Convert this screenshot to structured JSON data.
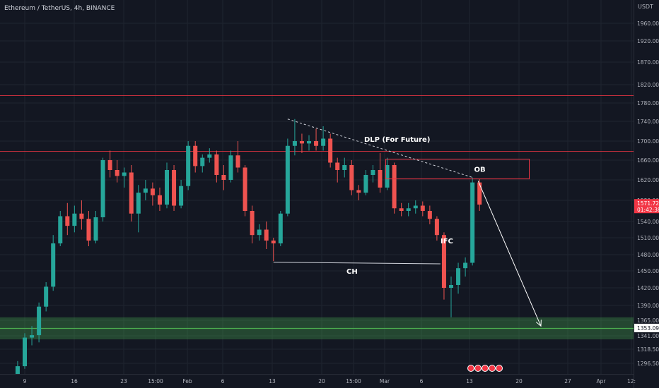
{
  "header": {
    "symbol": "Ethereum / TetherUS, 4h, BINANCE"
  },
  "chart_data": {
    "type": "candlestick",
    "currency": "USDT",
    "ylim": [
      1280,
      1990
    ],
    "price_ticks": [
      "1960.00",
      "1920.00",
      "1870.00",
      "1820.00",
      "1780.00",
      "1740.00",
      "1700.00",
      "1660.00",
      "1620.00",
      "1580.00",
      "1540.00",
      "1510.00",
      "1480.00",
      "1450.00",
      "1420.00",
      "1390.00",
      "1365.00",
      "1341.00",
      "1318.50",
      "1296.50"
    ],
    "x_labels": [
      "9",
      "16",
      "23",
      "15:00",
      "Feb",
      "6",
      "13",
      "20",
      "15:00",
      "Mar",
      "6",
      "13",
      "20",
      "27",
      "Apr",
      "12:"
    ],
    "current_price": {
      "value": "1571.72",
      "countdown": "01:42:38",
      "color": "#f23645"
    },
    "level_label": {
      "value": "1353.09",
      "color": "#131722"
    },
    "horizontal_levels": [
      1797,
      1680
    ],
    "demand_zone": {
      "top": 1370,
      "bottom": 1335,
      "line": 1353.09,
      "color": "#4caf50"
    },
    "order_block": {
      "label": "OB",
      "from": "2023-03-01",
      "to": "2023-03-20",
      "top": 1662,
      "bottom": 1622
    },
    "trendline": {
      "label": "DLP (For Future)",
      "from": [
        "2023-02-15",
        1745
      ],
      "to": [
        "2023-03-13",
        1625
      ]
    },
    "choch": {
      "label": "CH",
      "from": [
        "2023-02-13",
        1466
      ],
      "to": [
        "2023-03-08",
        1463
      ]
    },
    "ifc_label": {
      "text": "IFC",
      "x": "2023-03-09",
      "y": 1505
    },
    "projection": {
      "from": [
        "2023-03-13",
        1618
      ],
      "to": [
        "2023-03-19",
        1356
      ]
    },
    "candles": [
      {
        "t": "2023-01-08",
        "o": 1270,
        "h": 1300,
        "l": 1265,
        "c": 1292
      },
      {
        "t": "2023-01-09",
        "o": 1292,
        "h": 1345,
        "l": 1288,
        "c": 1338
      },
      {
        "t": "2023-01-10",
        "o": 1338,
        "h": 1356,
        "l": 1325,
        "c": 1342
      },
      {
        "t": "2023-01-11",
        "o": 1342,
        "h": 1395,
        "l": 1330,
        "c": 1388
      },
      {
        "t": "2023-01-12",
        "o": 1388,
        "h": 1430,
        "l": 1380,
        "c": 1422
      },
      {
        "t": "2023-01-13",
        "o": 1422,
        "h": 1515,
        "l": 1415,
        "c": 1500
      },
      {
        "t": "2023-01-14",
        "o": 1500,
        "h": 1560,
        "l": 1495,
        "c": 1550
      },
      {
        "t": "2023-01-15",
        "o": 1550,
        "h": 1575,
        "l": 1515,
        "c": 1532
      },
      {
        "t": "2023-01-16",
        "o": 1532,
        "h": 1570,
        "l": 1520,
        "c": 1555
      },
      {
        "t": "2023-01-17",
        "o": 1555,
        "h": 1580,
        "l": 1525,
        "c": 1545
      },
      {
        "t": "2023-01-18",
        "o": 1545,
        "h": 1560,
        "l": 1495,
        "c": 1505
      },
      {
        "t": "2023-01-19",
        "o": 1505,
        "h": 1560,
        "l": 1500,
        "c": 1548
      },
      {
        "t": "2023-01-20",
        "o": 1548,
        "h": 1665,
        "l": 1540,
        "c": 1660
      },
      {
        "t": "2023-01-21",
        "o": 1660,
        "h": 1680,
        "l": 1625,
        "c": 1640
      },
      {
        "t": "2023-01-22",
        "o": 1640,
        "h": 1660,
        "l": 1615,
        "c": 1628
      },
      {
        "t": "2023-01-23",
        "o": 1628,
        "h": 1645,
        "l": 1605,
        "c": 1635
      },
      {
        "t": "2023-01-24",
        "o": 1635,
        "h": 1650,
        "l": 1540,
        "c": 1555
      },
      {
        "t": "2023-01-25",
        "o": 1555,
        "h": 1610,
        "l": 1520,
        "c": 1595
      },
      {
        "t": "2023-01-26",
        "o": 1595,
        "h": 1620,
        "l": 1580,
        "c": 1603
      },
      {
        "t": "2023-01-27",
        "o": 1603,
        "h": 1615,
        "l": 1570,
        "c": 1590
      },
      {
        "t": "2023-01-28",
        "o": 1590,
        "h": 1605,
        "l": 1560,
        "c": 1572
      },
      {
        "t": "2023-01-29",
        "o": 1572,
        "h": 1655,
        "l": 1565,
        "c": 1640
      },
      {
        "t": "2023-01-30",
        "o": 1640,
        "h": 1650,
        "l": 1560,
        "c": 1570
      },
      {
        "t": "2023-01-31",
        "o": 1570,
        "h": 1620,
        "l": 1565,
        "c": 1608
      },
      {
        "t": "2023-02-01",
        "o": 1608,
        "h": 1700,
        "l": 1600,
        "c": 1690
      },
      {
        "t": "2023-02-02",
        "o": 1690,
        "h": 1700,
        "l": 1635,
        "c": 1648
      },
      {
        "t": "2023-02-03",
        "o": 1648,
        "h": 1672,
        "l": 1635,
        "c": 1665
      },
      {
        "t": "2023-02-04",
        "o": 1665,
        "h": 1685,
        "l": 1655,
        "c": 1672
      },
      {
        "t": "2023-02-05",
        "o": 1672,
        "h": 1680,
        "l": 1615,
        "c": 1630
      },
      {
        "t": "2023-02-06",
        "o": 1630,
        "h": 1650,
        "l": 1600,
        "c": 1620
      },
      {
        "t": "2023-02-07",
        "o": 1620,
        "h": 1680,
        "l": 1615,
        "c": 1670
      },
      {
        "t": "2023-02-08",
        "o": 1670,
        "h": 1700,
        "l": 1635,
        "c": 1645
      },
      {
        "t": "2023-02-09",
        "o": 1645,
        "h": 1650,
        "l": 1550,
        "c": 1560
      },
      {
        "t": "2023-02-10",
        "o": 1560,
        "h": 1570,
        "l": 1500,
        "c": 1515
      },
      {
        "t": "2023-02-11",
        "o": 1515,
        "h": 1535,
        "l": 1505,
        "c": 1525
      },
      {
        "t": "2023-02-12",
        "o": 1525,
        "h": 1540,
        "l": 1490,
        "c": 1505
      },
      {
        "t": "2023-02-13",
        "o": 1505,
        "h": 1510,
        "l": 1468,
        "c": 1500
      },
      {
        "t": "2023-02-14",
        "o": 1500,
        "h": 1560,
        "l": 1495,
        "c": 1555
      },
      {
        "t": "2023-02-15",
        "o": 1555,
        "h": 1705,
        "l": 1550,
        "c": 1690
      },
      {
        "t": "2023-02-16",
        "o": 1690,
        "h": 1745,
        "l": 1670,
        "c": 1700
      },
      {
        "t": "2023-02-17",
        "o": 1700,
        "h": 1715,
        "l": 1675,
        "c": 1695
      },
      {
        "t": "2023-02-18",
        "o": 1695,
        "h": 1712,
        "l": 1680,
        "c": 1700
      },
      {
        "t": "2023-02-19",
        "o": 1700,
        "h": 1725,
        "l": 1680,
        "c": 1690
      },
      {
        "t": "2023-02-20",
        "o": 1690,
        "h": 1730,
        "l": 1680,
        "c": 1705
      },
      {
        "t": "2023-02-21",
        "o": 1705,
        "h": 1715,
        "l": 1645,
        "c": 1655
      },
      {
        "t": "2023-02-22",
        "o": 1655,
        "h": 1665,
        "l": 1615,
        "c": 1640
      },
      {
        "t": "2023-02-23",
        "o": 1640,
        "h": 1665,
        "l": 1625,
        "c": 1650
      },
      {
        "t": "2023-02-24",
        "o": 1650,
        "h": 1660,
        "l": 1590,
        "c": 1600
      },
      {
        "t": "2023-02-25",
        "o": 1600,
        "h": 1610,
        "l": 1580,
        "c": 1595
      },
      {
        "t": "2023-02-26",
        "o": 1595,
        "h": 1640,
        "l": 1590,
        "c": 1630
      },
      {
        "t": "2023-02-27",
        "o": 1630,
        "h": 1650,
        "l": 1615,
        "c": 1640
      },
      {
        "t": "2023-02-28",
        "o": 1640,
        "h": 1675,
        "l": 1595,
        "c": 1605
      },
      {
        "t": "2023-03-01",
        "o": 1605,
        "h": 1665,
        "l": 1600,
        "c": 1650
      },
      {
        "t": "2023-03-02",
        "o": 1650,
        "h": 1655,
        "l": 1555,
        "c": 1565
      },
      {
        "t": "2023-03-03",
        "o": 1565,
        "h": 1575,
        "l": 1550,
        "c": 1560
      },
      {
        "t": "2023-03-04",
        "o": 1560,
        "h": 1575,
        "l": 1550,
        "c": 1565
      },
      {
        "t": "2023-03-05",
        "o": 1565,
        "h": 1580,
        "l": 1555,
        "c": 1570
      },
      {
        "t": "2023-03-06",
        "o": 1570,
        "h": 1578,
        "l": 1550,
        "c": 1560
      },
      {
        "t": "2023-03-07",
        "o": 1560,
        "h": 1570,
        "l": 1535,
        "c": 1545
      },
      {
        "t": "2023-03-08",
        "o": 1545,
        "h": 1550,
        "l": 1505,
        "c": 1515
      },
      {
        "t": "2023-03-09",
        "o": 1515,
        "h": 1520,
        "l": 1400,
        "c": 1420
      },
      {
        "t": "2023-03-10",
        "o": 1420,
        "h": 1440,
        "l": 1370,
        "c": 1425
      },
      {
        "t": "2023-03-11",
        "o": 1425,
        "h": 1465,
        "l": 1410,
        "c": 1455
      },
      {
        "t": "2023-03-12",
        "o": 1455,
        "h": 1475,
        "l": 1440,
        "c": 1465
      },
      {
        "t": "2023-03-13",
        "o": 1465,
        "h": 1625,
        "l": 1460,
        "c": 1615
      },
      {
        "t": "2023-03-14",
        "o": 1615,
        "h": 1622,
        "l": 1560,
        "c": 1572
      }
    ]
  }
}
